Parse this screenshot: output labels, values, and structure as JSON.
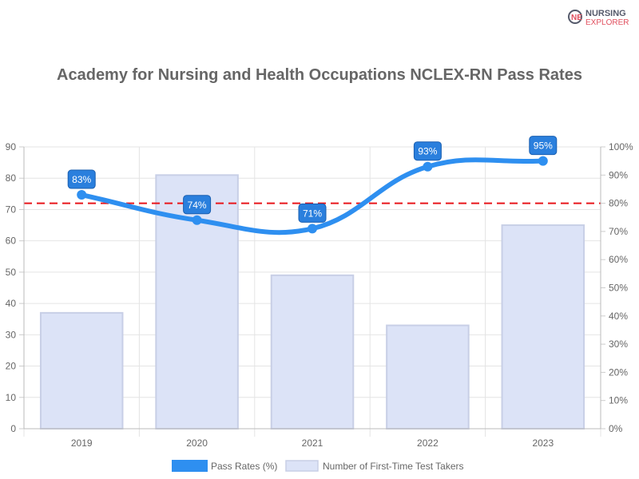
{
  "logo": {
    "line1": "NURSING",
    "line2": "EXPLORER"
  },
  "chart_data": {
    "type": "bar+line",
    "title": "Academy for Nursing and Health Occupations NCLEX-RN Pass Rates",
    "categories": [
      "2019",
      "2020",
      "2021",
      "2022",
      "2023"
    ],
    "series": [
      {
        "name": "Pass Rates (%)",
        "type": "line",
        "axis": "right",
        "values": [
          83,
          74,
          71,
          93,
          95
        ],
        "labels": [
          "83%",
          "74%",
          "71%",
          "93%",
          "95%"
        ],
        "color": "#2e8ff0"
      },
      {
        "name": "Number of First-Time Test Takers",
        "type": "bar",
        "axis": "left",
        "values": [
          37,
          81,
          49,
          33,
          65
        ],
        "color": "#dce3f7"
      }
    ],
    "reference_line": {
      "axis": "right",
      "value": 80,
      "color": "#e8161b",
      "style": "dashed"
    },
    "y_left": {
      "min": 0,
      "max": 90,
      "ticks": [
        "0",
        "10",
        "20",
        "30",
        "40",
        "50",
        "60",
        "70",
        "80",
        "90"
      ]
    },
    "y_right": {
      "min": 0,
      "max": 100,
      "ticks": [
        "0%",
        "10%",
        "20%",
        "30%",
        "40%",
        "50%",
        "60%",
        "70%",
        "80%",
        "90%",
        "100%"
      ]
    },
    "grid": true,
    "legend": "bottom"
  }
}
